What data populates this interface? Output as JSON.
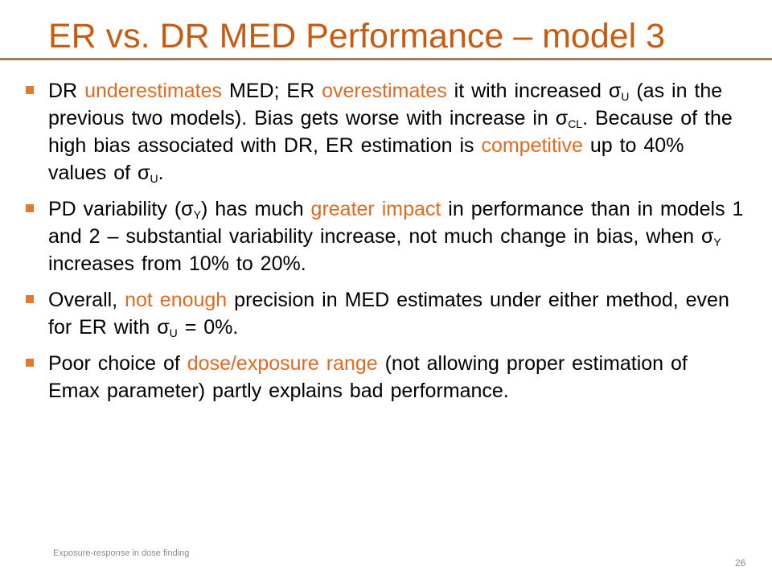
{
  "title": "ER vs. DR MED Performance – model 3",
  "bullets": {
    "b1": {
      "t1": "DR ",
      "h1": "underestimates",
      "t2": " MED; ER ",
      "h2": "overestimates",
      "t3": " it with increased σ",
      "s1": "U",
      "t4": " (as in the previous two models). Bias gets worse with increase in σ",
      "s2": "CL",
      "t5": ". Because of the high bias associated with DR, ER estimation is ",
      "h3": "competitive",
      "t6": " up to 40% values of σ",
      "s3": "U",
      "t7": "."
    },
    "b2": {
      "t1": "PD variability (",
      "g1": "σ",
      "s1": "Y",
      "t2": ") has much ",
      "h1": "greater impact",
      "t3": " in performance than in models 1 and 2 – substantial variability increase, not much change in bias, when ",
      "g2": "σ",
      "s2": "Y",
      "t4": " increases from 10% to 20%."
    },
    "b3": {
      "t1": "Overall, ",
      "h1": "not enough",
      "t2": " precision in MED estimates under either method, even for ER with σ",
      "s1": "U",
      "t3": " = 0%."
    },
    "b4": {
      "t1": "Poor choice of ",
      "h1": "dose/exposure range",
      "t2": " (not allowing proper estimation of  Emax parameter) partly explains  bad performance."
    }
  },
  "footer": "Exposure-response in dose finding",
  "page_number": "26",
  "colors": {
    "title": "#C75B12",
    "highlight": "#E06A22",
    "bullet": "#E07A2E",
    "rule": "#9E7F5F"
  }
}
